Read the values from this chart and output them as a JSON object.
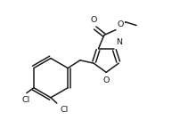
{
  "bg_color": "#ffffff",
  "line_color": "#1a1a1a",
  "line_width": 1.1,
  "font_size": 6.8,
  "figsize": [
    2.11,
    1.53
  ],
  "dpi": 100,
  "xlim": [
    0,
    10
  ],
  "ylim": [
    0,
    7.26
  ]
}
